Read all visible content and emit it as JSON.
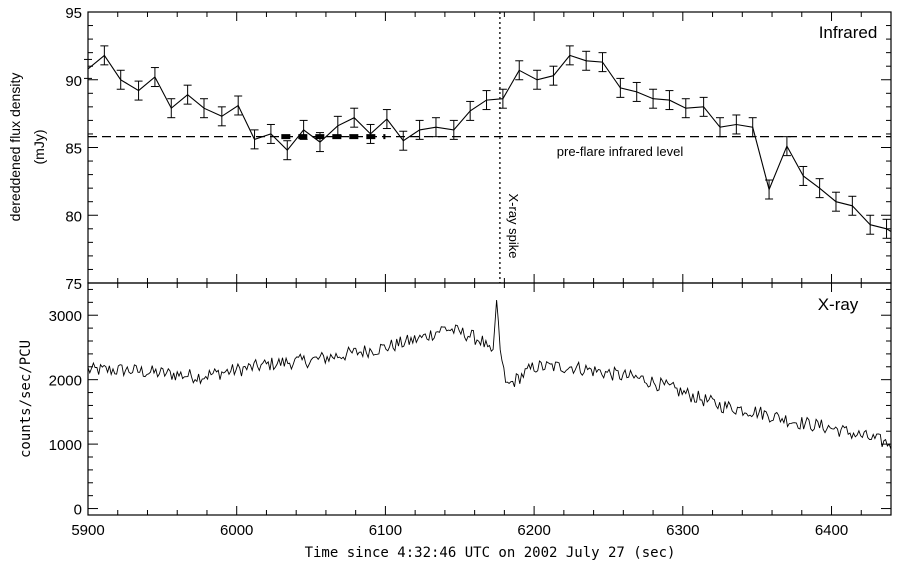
{
  "chart_data": [
    {
      "type": "line",
      "panel": "infrared",
      "title": "Infrared",
      "ylabel_line1": "dereddened flux density",
      "ylabel_line2": "(mJy)",
      "xlim": [
        5900,
        6440
      ],
      "ylim": [
        75,
        95
      ],
      "yticks": [
        "75",
        "80",
        "85",
        "90",
        "95"
      ],
      "grid": false,
      "series": [
        {
          "x": [
            5900,
            5911,
            5922,
            5934,
            5945,
            5956,
            5967,
            5978,
            5990,
            6001,
            6012,
            6023,
            6034,
            6045,
            6056,
            6068,
            6079,
            6090,
            6101,
            6112,
            6123,
            6134,
            6146,
            6157,
            6168,
            6179,
            6190,
            6202,
            6213,
            6224,
            6235,
            6246,
            6258,
            6269,
            6280,
            6291,
            6302,
            6314,
            6325,
            6336,
            6347,
            6358,
            6370,
            6381,
            6392,
            6403,
            6414,
            6426,
            6437,
            6440
          ],
          "y": [
            90.8,
            91.8,
            90.0,
            89.2,
            90.2,
            87.9,
            88.9,
            87.9,
            87.3,
            88.1,
            85.6,
            86.0,
            84.8,
            86.3,
            85.4,
            86.6,
            87.2,
            86.0,
            87.1,
            85.5,
            86.3,
            86.5,
            86.3,
            87.7,
            88.5,
            88.6,
            90.7,
            90.0,
            90.3,
            91.8,
            91.4,
            91.3,
            89.4,
            89.1,
            88.6,
            88.5,
            87.9,
            88.0,
            86.5,
            86.7,
            86.5,
            81.9,
            85.1,
            82.9,
            82.0,
            81.0,
            80.7,
            79.3,
            79.0,
            78.8
          ],
          "yerr": 0.7
        }
      ],
      "annotations": [
        {
          "text": "pre-flare infrared level",
          "y": 85.8,
          "style": "dashed horizontal line"
        },
        {
          "text": "X-ray spike",
          "x": 6177,
          "style": "dotted vertical line"
        },
        {
          "x_range": [
            6030,
            6100
          ],
          "y": 85.8,
          "style": "thick dashed segment"
        }
      ]
    },
    {
      "type": "line",
      "panel": "x-ray",
      "title": "X-ray",
      "ylabel": "counts/sec/PCU",
      "xlabel": "Time since 4:32:46 UTC on 2002 July 27 (sec)",
      "xlim": [
        5900,
        6440
      ],
      "ylim": [
        -100,
        3500
      ],
      "xticks": [
        "5900",
        "6000",
        "6100",
        "6200",
        "6300",
        "6400"
      ],
      "yticks": [
        "0",
        "1000",
        "2000",
        "3000"
      ],
      "grid": false,
      "series": [
        {
          "x": [
            5900,
            5925,
            5950,
            5975,
            6000,
            6025,
            6050,
            6075,
            6100,
            6125,
            6140,
            6155,
            6165,
            6172,
            6175,
            6177,
            6179,
            6182,
            6188,
            6200,
            6225,
            6250,
            6275,
            6300,
            6325,
            6350,
            6375,
            6400,
            6425,
            6440
          ],
          "y": [
            2150,
            2150,
            2100,
            2050,
            2150,
            2250,
            2300,
            2400,
            2500,
            2650,
            2800,
            2700,
            2600,
            2350,
            3300,
            2500,
            2150,
            1900,
            2000,
            2200,
            2200,
            2100,
            2000,
            1800,
            1600,
            1500,
            1350,
            1250,
            1100,
            1000
          ],
          "noise": 110
        }
      ]
    }
  ]
}
